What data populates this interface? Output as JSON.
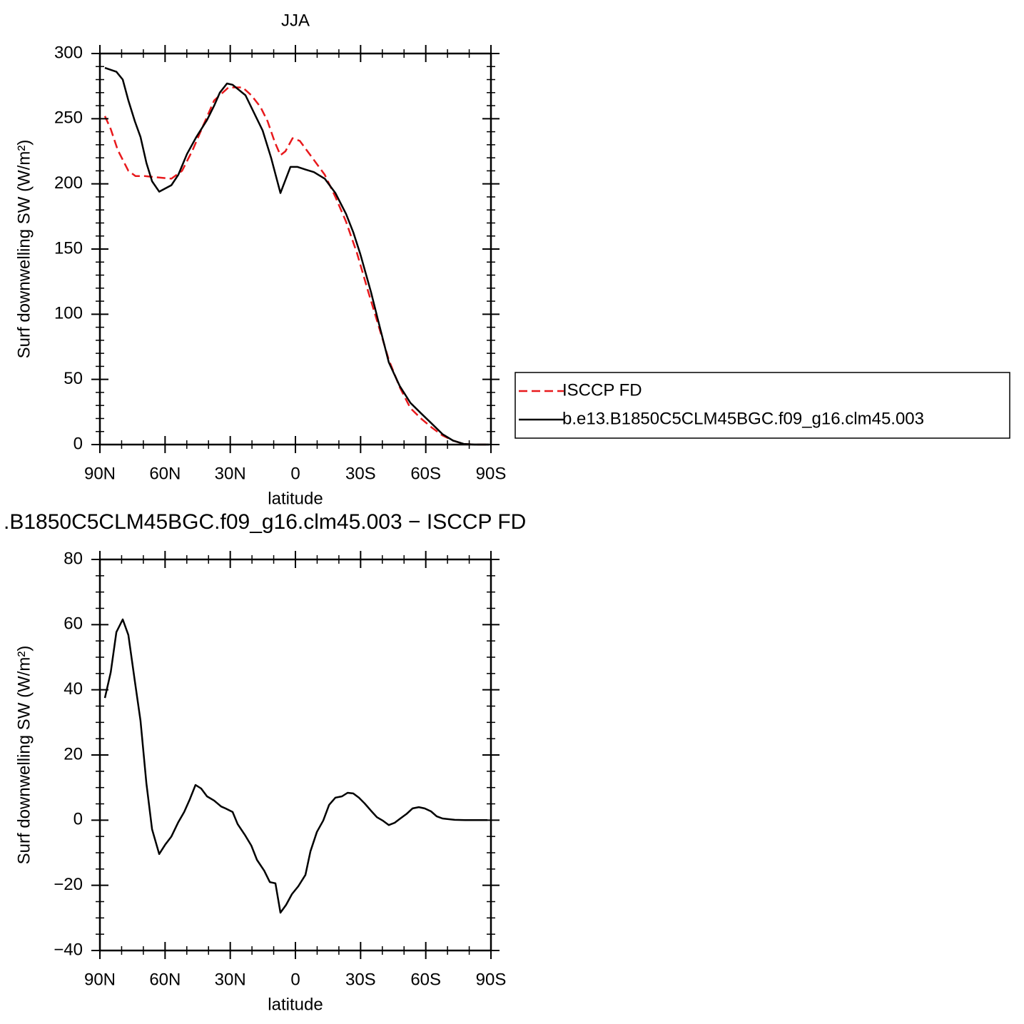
{
  "chart_data": [
    {
      "type": "line",
      "title": "JJA",
      "xlabel": "latitude",
      "ylabel": "Surf downwelling SW (W/m²)",
      "xlim": [
        90,
        -90
      ],
      "xticks": [
        {
          "value": 90,
          "label": "90N"
        },
        {
          "value": 60,
          "label": "60N"
        },
        {
          "value": 30,
          "label": "30N"
        },
        0,
        {
          "value": -30,
          "label": "30S"
        },
        {
          "value": -60,
          "label": "60S"
        },
        {
          "value": -90,
          "label": "90S"
        }
      ],
      "xminorticks": [
        80,
        70,
        50,
        40,
        20,
        10,
        -10,
        -20,
        -40,
        -50,
        -70,
        -80
      ],
      "ylim": [
        0,
        300
      ],
      "yticks": [
        0,
        50,
        100,
        150,
        200,
        250,
        300
      ],
      "yminorticks": [
        10,
        20,
        30,
        40,
        60,
        70,
        80,
        90,
        110,
        120,
        130,
        140,
        160,
        170,
        180,
        190,
        210,
        220,
        230,
        240,
        260,
        270,
        280,
        290
      ],
      "legend": "right",
      "series": [
        {
          "name": "ISCCP FD",
          "color": "#e8191c",
          "dash": true,
          "x": [
            87.7,
            85,
            81.8,
            76.9,
            73.6,
            69.3,
            63.7,
            57.1,
            52.2,
            47.3,
            42.4,
            37.4,
            30.8,
            24.3,
            20.3,
            16.1,
            12.8,
            9.5,
            6.9,
            4.6,
            1.3,
            -2,
            -6.9,
            -13.5,
            -18.4,
            -23.3,
            -28.3,
            -33.2,
            -38.1,
            -43,
            -48,
            -52.9,
            -57.8,
            -62.8,
            -67.7,
            -72.6,
            -77.5,
            -82.5,
            -89
          ],
          "values": [
            252,
            242,
            226,
            210,
            206,
            206,
            205,
            204,
            210,
            226,
            245,
            264,
            274,
            274,
            268,
            259,
            248,
            232,
            222,
            225,
            235,
            233,
            222,
            207,
            190,
            171,
            147,
            119,
            92,
            65,
            44,
            28,
            20,
            13,
            7,
            3,
            0.5,
            0,
            0
          ]
        },
        {
          "name": "b.e13.B1850C5CLM45BGC.f09_g16.clm45.003",
          "color": "#000000",
          "dash": false,
          "x": [
            87.7,
            82.4,
            79.5,
            76.9,
            73.9,
            71.3,
            68.6,
            66,
            62.7,
            57.1,
            53.9,
            49.9,
            45.6,
            40.7,
            37.4,
            34.8,
            31.5,
            28.9,
            23,
            15.1,
            11.2,
            6.9,
            2.3,
            -1,
            -4.6,
            -8.5,
            -13.5,
            -18.4,
            -23.3,
            -26.6,
            -29.9,
            -34.8,
            -38.1,
            -43,
            -48,
            -52.9,
            -57.8,
            -62.8,
            -67.7,
            -72.6,
            -77.5,
            -82.5,
            -89
          ],
          "values": [
            289,
            286,
            280,
            264,
            248,
            236,
            216,
            202,
            194,
            199,
            207,
            223,
            236,
            249,
            260,
            270,
            277,
            276,
            268,
            241,
            220,
            193,
            213,
            213,
            211,
            209,
            204,
            193,
            177,
            163,
            146,
            117,
            95,
            63,
            45,
            32,
            24,
            16,
            8,
            3,
            0.5,
            0,
            0
          ]
        }
      ]
    },
    {
      "type": "line",
      "title": ".B1850C5CLM45BGC.f09_g16.clm45.003 − ISCCP FD",
      "xlabel": "latitude",
      "ylabel": "Surf downwelling SW (W/m²)",
      "xlim": [
        90,
        -90
      ],
      "xticks": [
        {
          "value": 90,
          "label": "90N"
        },
        {
          "value": 60,
          "label": "60N"
        },
        {
          "value": 30,
          "label": "30N"
        },
        0,
        {
          "value": -30,
          "label": "30S"
        },
        {
          "value": -60,
          "label": "60S"
        },
        {
          "value": -90,
          "label": "90S"
        }
      ],
      "xminorticks": [
        80,
        70,
        50,
        40,
        20,
        10,
        -10,
        -20,
        -40,
        -50,
        -70,
        -80
      ],
      "ylim": [
        -40,
        80
      ],
      "yticks": [
        {
          "value": -40,
          "label": "−40"
        },
        {
          "value": -20,
          "label": "−20"
        },
        0,
        20,
        40,
        60,
        80
      ],
      "yminorticks": [
        -35,
        -30,
        -25,
        -15,
        -10,
        -5,
        5,
        10,
        15,
        25,
        30,
        35,
        45,
        50,
        55,
        65,
        70,
        75
      ],
      "series": [
        {
          "color": "#000000",
          "dash": false,
          "x": [
            87.7,
            85,
            82.4,
            79.5,
            76.9,
            73.9,
            71.3,
            68.6,
            66,
            62.7,
            59.8,
            57.1,
            53.9,
            51.2,
            48.6,
            46,
            43.4,
            40.7,
            37.4,
            34.2,
            32.2,
            28.9,
            26.6,
            23.3,
            20.3,
            17.7,
            14.4,
            11.8,
            9.2,
            6.9,
            4.3,
            1.6,
            -1.3,
            -4.6,
            -6.9,
            -9.9,
            -12.8,
            -15.5,
            -18.4,
            -21.4,
            -24,
            -26.6,
            -29.2,
            -31.9,
            -34.8,
            -37.5,
            -40.1,
            -43,
            -45.7,
            -48.3,
            -51.3,
            -53.9,
            -56.8,
            -59.5,
            -62.4,
            -65,
            -67.7,
            -73.3,
            -78.2,
            -82.5,
            -88.4
          ],
          "values": [
            37.5,
            45.4,
            57.7,
            61.6,
            56.8,
            42.6,
            30.5,
            11.2,
            -2.8,
            -10.4,
            -7.4,
            -5,
            -0.6,
            2.5,
            6.4,
            10.8,
            9.7,
            7.3,
            6,
            4.2,
            3.6,
            2.5,
            -1.2,
            -4.5,
            -7.8,
            -12.2,
            -15.5,
            -19,
            -19.4,
            -28.4,
            -26,
            -22.7,
            -20.3,
            -16.8,
            -9.6,
            -3.6,
            -0.1,
            4.7,
            6.9,
            7.3,
            8.4,
            8.2,
            6.9,
            5.1,
            2.9,
            0.9,
            -0.1,
            -1.5,
            -0.8,
            0.5,
            2,
            3.6,
            4,
            3.6,
            2.7,
            1.2,
            0.5,
            0.1,
            0,
            0,
            0
          ]
        }
      ]
    }
  ]
}
